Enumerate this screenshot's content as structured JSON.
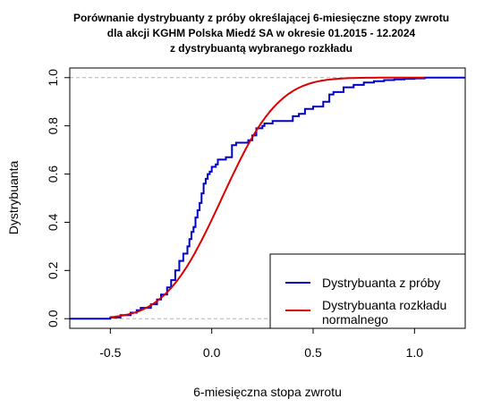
{
  "chart_data": {
    "type": "line",
    "title_lines": [
      "Porównanie dystrybuanty z próby określającej 6-miesięczne stopy zwrotu",
      "dla akcji KGHM Polska Miedź SA w okresie 01.2015 - 12.2024",
      "z dystrybuantą wybranego rozkładu"
    ],
    "xlabel": "6-miesięczna stopa zwrotu",
    "ylabel": "Dystrybuanta",
    "xlim": [
      -0.7,
      1.25
    ],
    "ylim": [
      -0.04,
      1.04
    ],
    "x_ticks": [
      -0.5,
      0.0,
      0.5,
      1.0
    ],
    "x_tick_labels": [
      "-0.5",
      "0.0",
      "0.5",
      "1.0"
    ],
    "y_ticks": [
      0.0,
      0.2,
      0.4,
      0.6,
      0.8,
      1.0
    ],
    "y_tick_labels": [
      "0.0",
      "0.2",
      "0.4",
      "0.6",
      "0.8",
      "1.0"
    ],
    "reference_lines_y": [
      0.0,
      1.0
    ],
    "legend_position": "bottom-right",
    "series": [
      {
        "name": "Dystrybuanta z próby",
        "kind": "step",
        "color": "#0000cc",
        "x": [
          -0.7,
          -0.5,
          -0.45,
          -0.4,
          -0.37,
          -0.35,
          -0.3,
          -0.27,
          -0.25,
          -0.22,
          -0.2,
          -0.18,
          -0.16,
          -0.14,
          -0.12,
          -0.11,
          -0.1,
          -0.09,
          -0.08,
          -0.07,
          -0.06,
          -0.05,
          -0.04,
          -0.03,
          -0.02,
          -0.01,
          0.0,
          0.01,
          0.02,
          0.03,
          0.05,
          0.07,
          0.1,
          0.12,
          0.15,
          0.18,
          0.2,
          0.22,
          0.25,
          0.26,
          0.28,
          0.3,
          0.33,
          0.36,
          0.4,
          0.43,
          0.46,
          0.5,
          0.52,
          0.55,
          0.58,
          0.6,
          0.65,
          0.7,
          0.75,
          0.8,
          0.85,
          0.9,
          0.95,
          1.0,
          1.05,
          1.1,
          1.25
        ],
        "y": [
          0.0,
          0.005,
          0.015,
          0.025,
          0.035,
          0.045,
          0.06,
          0.08,
          0.1,
          0.13,
          0.16,
          0.2,
          0.24,
          0.27,
          0.3,
          0.33,
          0.36,
          0.38,
          0.42,
          0.45,
          0.48,
          0.52,
          0.56,
          0.58,
          0.6,
          0.61,
          0.63,
          0.63,
          0.64,
          0.66,
          0.66,
          0.67,
          0.72,
          0.73,
          0.73,
          0.74,
          0.76,
          0.79,
          0.8,
          0.81,
          0.81,
          0.82,
          0.82,
          0.82,
          0.84,
          0.85,
          0.87,
          0.88,
          0.88,
          0.9,
          0.93,
          0.94,
          0.96,
          0.97,
          0.98,
          0.985,
          0.99,
          0.993,
          0.995,
          0.997,
          1.0,
          1.0,
          1.0
        ]
      },
      {
        "name": "Dystrybuanta rozkładu normalnego",
        "kind": "normal_cdf",
        "color": "#dd0000",
        "mean": 0.05,
        "sd": 0.22,
        "x_range": [
          -0.5,
          1.05
        ]
      }
    ]
  },
  "legend": {
    "items": [
      {
        "label_lines": [
          "Dystrybuanta z próby"
        ],
        "color": "#0000cc"
      },
      {
        "label_lines": [
          "Dystrybuanta rozkładu",
          "normalnego"
        ],
        "color": "#dd0000"
      }
    ]
  }
}
